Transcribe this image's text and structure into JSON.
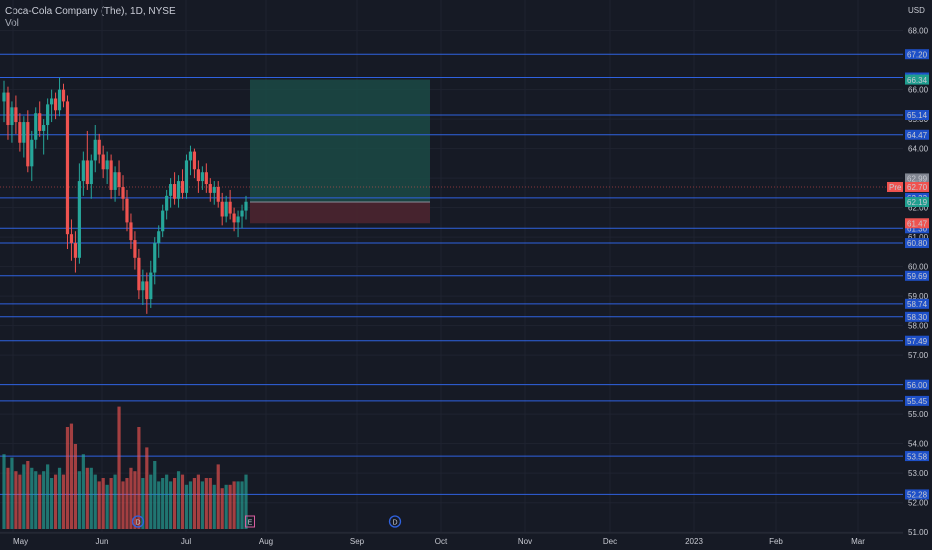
{
  "header": {
    "title": "Coca-Cola Company (The), 1D, NYSE",
    "volume_label": "Vol"
  },
  "currency_label": "USD",
  "colors": {
    "background": "#161a25",
    "up": "#26a69a",
    "down": "#ef5350",
    "level_line": "#2f62e0",
    "label_blue": "#1e50c8",
    "target_zone": "#1b4a45",
    "stop_zone": "#4b2530",
    "pre_badge": "#f05350",
    "last_price_badge": "#1f9e8f",
    "gray_badge": "#808591"
  },
  "chart_data": {
    "type": "candlestick",
    "symbol": "Coca-Cola Company (The)",
    "interval": "1D",
    "exchange": "NYSE",
    "x_labels": [
      "May",
      "Jun",
      "Jul",
      "Aug",
      "Sep",
      "Oct",
      "Nov",
      "Dec",
      "2023",
      "Feb",
      "Mar"
    ],
    "y_ticks": [
      68.0,
      66.0,
      65.0,
      64.0,
      63.0,
      62.0,
      61.0,
      60.0,
      59.0,
      58.0,
      57.0,
      56.0,
      55.0,
      54.0,
      53.0,
      52.0,
      51.0
    ],
    "ylim": [
      50.6,
      68.8
    ],
    "horizontal_levels": [
      67.2,
      66.41,
      65.14,
      64.47,
      62.33,
      61.3,
      60.8,
      59.69,
      58.74,
      58.3,
      57.49,
      56.0,
      55.45,
      53.58,
      52.28
    ],
    "price_badges": [
      {
        "value": "66.34",
        "kind": "green"
      },
      {
        "value": "62.99",
        "kind": "gray"
      },
      {
        "value": "62.70",
        "kind": "pre",
        "prefix": "Pre"
      },
      {
        "value": "62.19",
        "kind": "green"
      },
      {
        "value": "61.47",
        "kind": "red"
      }
    ],
    "position_tool": {
      "entry": 62.19,
      "target": 66.34,
      "stop": 61.47,
      "start_label": "Jul",
      "end_label": "Oct"
    },
    "event_markers": [
      {
        "label": "D",
        "near": "Jun"
      },
      {
        "label": "E",
        "near": "Aug"
      },
      {
        "label": "D",
        "near": "Sep"
      }
    ],
    "candles": [
      {
        "o": 65.6,
        "h": 66.3,
        "l": 64.9,
        "c": 65.9
      },
      {
        "o": 65.9,
        "h": 66.1,
        "l": 64.3,
        "c": 64.8
      },
      {
        "o": 64.8,
        "h": 65.6,
        "l": 64.2,
        "c": 65.4
      },
      {
        "o": 65.4,
        "h": 65.8,
        "l": 64.5,
        "c": 64.9
      },
      {
        "o": 64.9,
        "h": 65.2,
        "l": 63.9,
        "c": 64.2
      },
      {
        "o": 64.2,
        "h": 65.1,
        "l": 63.7,
        "c": 64.9
      },
      {
        "o": 64.9,
        "h": 65.3,
        "l": 63.2,
        "c": 63.4
      },
      {
        "o": 63.4,
        "h": 64.6,
        "l": 62.9,
        "c": 64.3
      },
      {
        "o": 64.3,
        "h": 65.4,
        "l": 64.0,
        "c": 65.2
      },
      {
        "o": 65.2,
        "h": 65.6,
        "l": 64.4,
        "c": 64.6
      },
      {
        "o": 64.6,
        "h": 65.0,
        "l": 63.8,
        "c": 64.8
      },
      {
        "o": 64.8,
        "h": 65.7,
        "l": 64.3,
        "c": 65.5
      },
      {
        "o": 65.5,
        "h": 66.0,
        "l": 64.9,
        "c": 65.7
      },
      {
        "o": 65.7,
        "h": 65.9,
        "l": 65.0,
        "c": 65.3
      },
      {
        "o": 65.3,
        "h": 66.4,
        "l": 65.1,
        "c": 66.0
      },
      {
        "o": 66.0,
        "h": 66.2,
        "l": 65.4,
        "c": 65.6
      },
      {
        "o": 65.6,
        "h": 65.8,
        "l": 60.6,
        "c": 61.1
      },
      {
        "o": 61.1,
        "h": 61.6,
        "l": 60.2,
        "c": 60.8
      },
      {
        "o": 60.8,
        "h": 61.2,
        "l": 59.8,
        "c": 60.3
      },
      {
        "o": 60.3,
        "h": 63.5,
        "l": 60.1,
        "c": 62.9
      },
      {
        "o": 62.9,
        "h": 63.9,
        "l": 62.4,
        "c": 63.6
      },
      {
        "o": 63.6,
        "h": 64.6,
        "l": 62.6,
        "c": 62.8
      },
      {
        "o": 62.8,
        "h": 63.8,
        "l": 62.3,
        "c": 63.6
      },
      {
        "o": 63.6,
        "h": 64.8,
        "l": 63.2,
        "c": 64.3
      },
      {
        "o": 64.3,
        "h": 64.5,
        "l": 63.5,
        "c": 63.8
      },
      {
        "o": 63.8,
        "h": 64.1,
        "l": 63.0,
        "c": 63.3
      },
      {
        "o": 63.3,
        "h": 63.9,
        "l": 62.8,
        "c": 63.6
      },
      {
        "o": 63.6,
        "h": 63.8,
        "l": 62.3,
        "c": 62.6
      },
      {
        "o": 62.6,
        "h": 63.4,
        "l": 62.2,
        "c": 63.2
      },
      {
        "o": 63.2,
        "h": 63.6,
        "l": 62.4,
        "c": 62.7
      },
      {
        "o": 62.7,
        "h": 63.1,
        "l": 61.9,
        "c": 62.3
      },
      {
        "o": 62.3,
        "h": 62.6,
        "l": 61.2,
        "c": 61.5
      },
      {
        "o": 61.5,
        "h": 61.8,
        "l": 60.6,
        "c": 60.9
      },
      {
        "o": 60.9,
        "h": 61.2,
        "l": 59.9,
        "c": 60.3
      },
      {
        "o": 60.3,
        "h": 60.6,
        "l": 58.9,
        "c": 59.2
      },
      {
        "o": 59.2,
        "h": 59.9,
        "l": 58.7,
        "c": 59.5
      },
      {
        "o": 59.5,
        "h": 59.8,
        "l": 58.4,
        "c": 58.9
      },
      {
        "o": 58.9,
        "h": 60.2,
        "l": 58.6,
        "c": 59.8
      },
      {
        "o": 59.8,
        "h": 61.0,
        "l": 59.4,
        "c": 60.8
      },
      {
        "o": 60.8,
        "h": 61.4,
        "l": 60.3,
        "c": 61.2
      },
      {
        "o": 61.2,
        "h": 62.1,
        "l": 61.0,
        "c": 61.9
      },
      {
        "o": 61.9,
        "h": 62.6,
        "l": 61.6,
        "c": 62.4
      },
      {
        "o": 62.4,
        "h": 63.0,
        "l": 62.0,
        "c": 62.8
      },
      {
        "o": 62.8,
        "h": 63.2,
        "l": 62.1,
        "c": 62.3
      },
      {
        "o": 62.3,
        "h": 63.1,
        "l": 62.0,
        "c": 62.9
      },
      {
        "o": 62.9,
        "h": 63.3,
        "l": 62.3,
        "c": 62.5
      },
      {
        "o": 62.5,
        "h": 63.8,
        "l": 62.3,
        "c": 63.6
      },
      {
        "o": 63.6,
        "h": 64.1,
        "l": 63.1,
        "c": 63.9
      },
      {
        "o": 63.9,
        "h": 64.0,
        "l": 63.0,
        "c": 63.3
      },
      {
        "o": 63.3,
        "h": 63.6,
        "l": 62.5,
        "c": 62.9
      },
      {
        "o": 62.9,
        "h": 63.4,
        "l": 62.6,
        "c": 63.2
      },
      {
        "o": 63.2,
        "h": 63.5,
        "l": 62.5,
        "c": 62.8
      },
      {
        "o": 62.8,
        "h": 63.0,
        "l": 62.2,
        "c": 62.5
      },
      {
        "o": 62.5,
        "h": 62.9,
        "l": 62.1,
        "c": 62.7
      },
      {
        "o": 62.7,
        "h": 62.9,
        "l": 62.0,
        "c": 62.2
      },
      {
        "o": 62.2,
        "h": 62.5,
        "l": 61.4,
        "c": 61.7
      },
      {
        "o": 61.7,
        "h": 62.4,
        "l": 61.5,
        "c": 62.2
      },
      {
        "o": 62.2,
        "h": 62.6,
        "l": 61.6,
        "c": 61.8
      },
      {
        "o": 61.8,
        "h": 62.0,
        "l": 61.2,
        "c": 61.5
      },
      {
        "o": 61.5,
        "h": 61.9,
        "l": 61.0,
        "c": 61.7
      },
      {
        "o": 61.7,
        "h": 62.1,
        "l": 61.3,
        "c": 61.9
      },
      {
        "o": 61.9,
        "h": 62.4,
        "l": 61.6,
        "c": 62.2
      }
    ],
    "volumes": [
      22,
      18,
      21,
      17,
      16,
      19,
      20,
      18,
      17,
      16,
      17,
      19,
      15,
      16,
      18,
      16,
      30,
      31,
      25,
      17,
      22,
      18,
      18,
      16,
      14,
      15,
      13,
      15,
      16,
      36,
      14,
      15,
      18,
      17,
      30,
      15,
      24,
      16,
      20,
      14,
      15,
      16,
      14,
      15,
      17,
      16,
      13,
      14,
      15,
      16,
      14,
      15,
      15,
      13,
      19,
      12,
      13,
      13,
      14,
      14,
      14,
      16
    ]
  }
}
